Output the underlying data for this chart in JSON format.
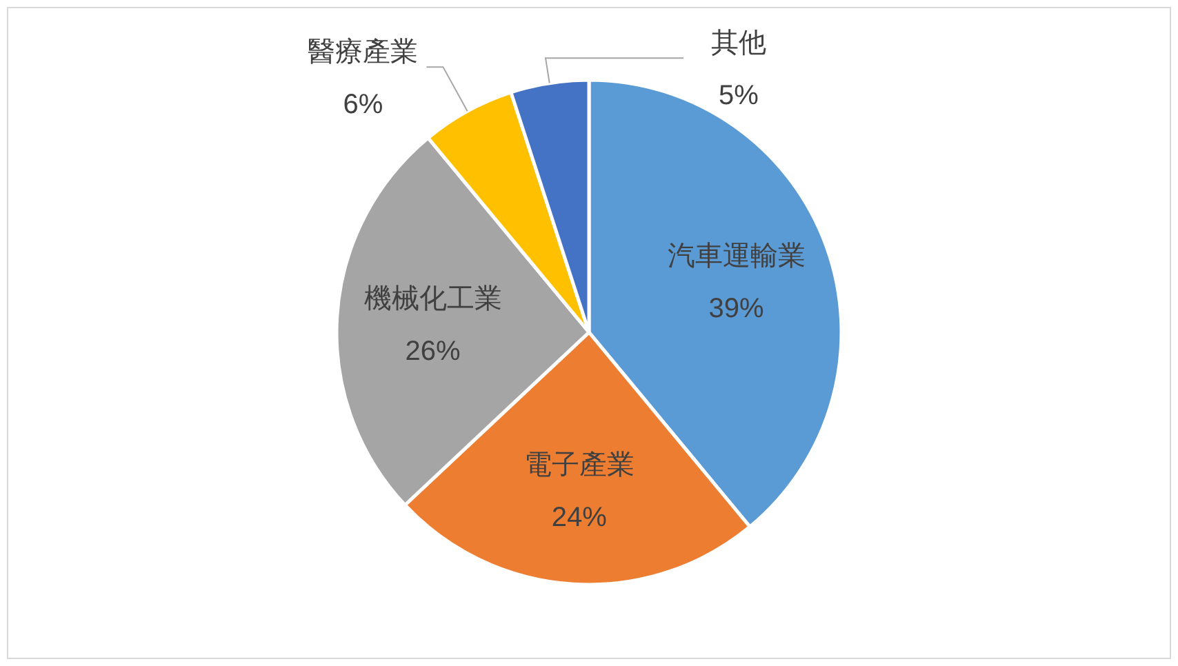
{
  "chart_data": {
    "type": "pie",
    "categories": [
      "汽車運輸業",
      "電子產業",
      "機械化工業",
      "醫療產業",
      "其他"
    ],
    "values": [
      39,
      24,
      26,
      6,
      5
    ],
    "colors": [
      "#5b9bd5",
      "#ed7d31",
      "#a5a5a5",
      "#ffc000",
      "#4472c4"
    ],
    "value_labels": [
      "39%",
      "24%",
      "26%",
      "6%",
      "5%"
    ]
  }
}
